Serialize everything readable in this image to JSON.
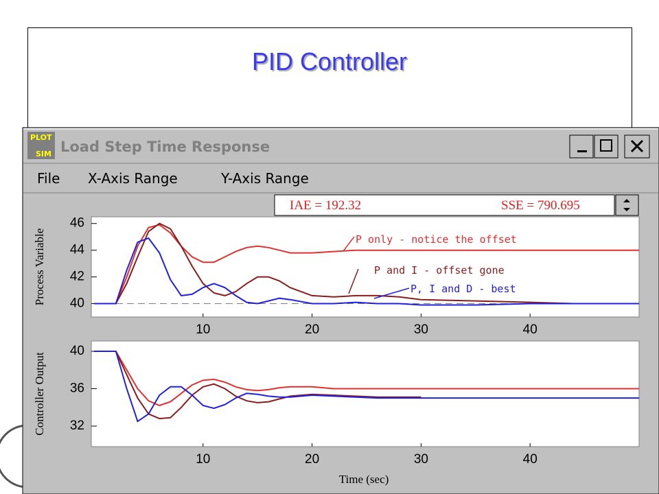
{
  "slide": {
    "title": "PID Controller"
  },
  "window": {
    "title": "Load Step Time Response",
    "icon_label": [
      "PLOT",
      "SIM"
    ],
    "menu": [
      "File",
      "X-Axis Range",
      "Y-Axis Range"
    ],
    "status": [
      "IAE = 192.32",
      "SSE = 790.695"
    ]
  },
  "chart_data": [
    {
      "type": "line",
      "ylabel": "Process Variable",
      "x": [
        0,
        2,
        3,
        4,
        5,
        6,
        7,
        8,
        9,
        10,
        11,
        12,
        13,
        14,
        15,
        16,
        17,
        18,
        20,
        22,
        24,
        26,
        28,
        30,
        35,
        40,
        44,
        50
      ],
      "xlim": [
        0,
        50
      ],
      "xticks": [
        10,
        20,
        30,
        40
      ],
      "ylim": [
        39,
        46.5
      ],
      "yticks": [
        40,
        42,
        44,
        46
      ],
      "annotations": [
        "P only - notice the offset",
        "P and I - offset gone",
        "P, I and D - best"
      ],
      "series": [
        {
          "color": "#e03030",
          "values": [
            40,
            40,
            42,
            44.3,
            45.7,
            45.9,
            45.3,
            44.3,
            43.5,
            43.1,
            43.1,
            43.5,
            43.9,
            44.2,
            44.3,
            44.2,
            44,
            43.8,
            43.8,
            43.9,
            44,
            44,
            44,
            44,
            44,
            44,
            44,
            44
          ]
        },
        {
          "color": "#8b1c1c",
          "values": [
            40,
            40,
            41.5,
            43.5,
            45.4,
            46,
            45.6,
            44.3,
            42.8,
            41.5,
            40.8,
            40.6,
            40.9,
            41.5,
            42,
            42,
            41.7,
            41.2,
            40.6,
            40.5,
            40.6,
            40.6,
            40.5,
            40.3,
            40.2,
            40.1,
            40,
            null
          ]
        },
        {
          "color": "#2020e0",
          "values": [
            40,
            40,
            42.5,
            44.6,
            44.9,
            43.8,
            41.8,
            40.6,
            40.7,
            41.2,
            41.5,
            41.2,
            40.6,
            40.1,
            40,
            40.2,
            40.4,
            40.3,
            40,
            40,
            40.1,
            40,
            40,
            39.9,
            39.9,
            40,
            40,
            40
          ]
        }
      ]
    },
    {
      "type": "line",
      "ylabel": "Controller Output",
      "xlabel": "Time (sec)",
      "x": [
        0,
        2,
        3,
        4,
        5,
        6,
        7,
        8,
        9,
        10,
        11,
        12,
        13,
        14,
        15,
        16,
        17,
        18,
        20,
        22,
        24,
        26,
        28,
        30,
        35,
        40,
        44,
        50
      ],
      "xlim": [
        0,
        50
      ],
      "xticks": [
        10,
        20,
        30,
        40
      ],
      "ylim": [
        29.8,
        41.1
      ],
      "yticks": [
        32,
        36,
        40
      ],
      "series": [
        {
          "color": "#e03030",
          "values": [
            40,
            40,
            38,
            36,
            34.7,
            34.2,
            34.6,
            35.5,
            36.4,
            36.9,
            37,
            36.7,
            36.2,
            35.9,
            35.8,
            35.9,
            36.1,
            36.2,
            36.2,
            36,
            36,
            36,
            36,
            36,
            36,
            36,
            36,
            36
          ]
        },
        {
          "color": "#8b1c1c",
          "values": [
            40,
            40,
            37.5,
            35,
            33.3,
            32.8,
            32.9,
            34,
            35.3,
            36.2,
            36.5,
            36,
            35.2,
            34.7,
            34.5,
            34.6,
            34.9,
            35.2,
            35.4,
            35.3,
            35.2,
            35.1,
            35.1,
            35.1,
            null,
            null,
            null,
            null
          ]
        },
        {
          "color": "#2020e0",
          "values": [
            40,
            40,
            36,
            32.5,
            33.3,
            35.3,
            36.2,
            36.2,
            35.3,
            34.2,
            33.9,
            34.3,
            35,
            35.5,
            35.4,
            35.2,
            35.1,
            35.1,
            35.3,
            35.2,
            35.1,
            35,
            35,
            35,
            35,
            35,
            35,
            35
          ]
        }
      ]
    }
  ]
}
